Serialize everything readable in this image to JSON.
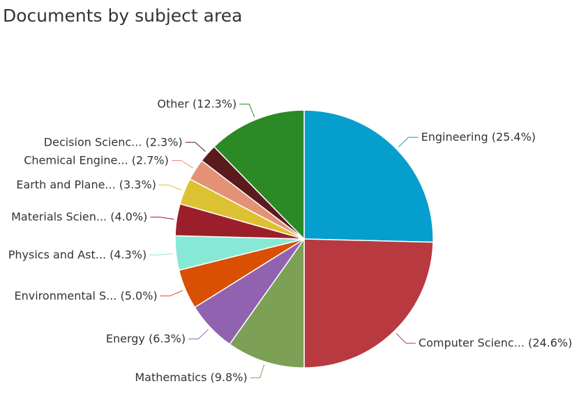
{
  "chart_data": {
    "type": "pie",
    "title": "Documents by subject area",
    "slices": [
      {
        "label": "Engineering (25.4%)",
        "value": 25.4,
        "color": "#069fcd"
      },
      {
        "label": "Computer Scienc... (24.6%)",
        "value": 24.6,
        "color": "#b83a40"
      },
      {
        "label": "Mathematics (9.8%)",
        "value": 9.8,
        "color": "#7ca056"
      },
      {
        "label": "Energy (6.3%)",
        "value": 6.3,
        "color": "#9162b0"
      },
      {
        "label": "Environmental S... (5.0%)",
        "value": 5.0,
        "color": "#d94f04"
      },
      {
        "label": "Physics and Ast... (4.3%)",
        "value": 4.3,
        "color": "#88e8d6"
      },
      {
        "label": "Materials Scien... (4.0%)",
        "value": 4.0,
        "color": "#9b1f2a"
      },
      {
        "label": "Earth and Plane... (3.3%)",
        "value": 3.3,
        "color": "#dcc232"
      },
      {
        "label": "Chemical Engine... (2.7%)",
        "value": 2.7,
        "color": "#e49276"
      },
      {
        "label": "Decision Scienc... (2.3%)",
        "value": 2.3,
        "color": "#5b1a1e"
      },
      {
        "label": "Other (12.3%)",
        "value": 12.3,
        "color": "#2b8a25"
      }
    ]
  }
}
